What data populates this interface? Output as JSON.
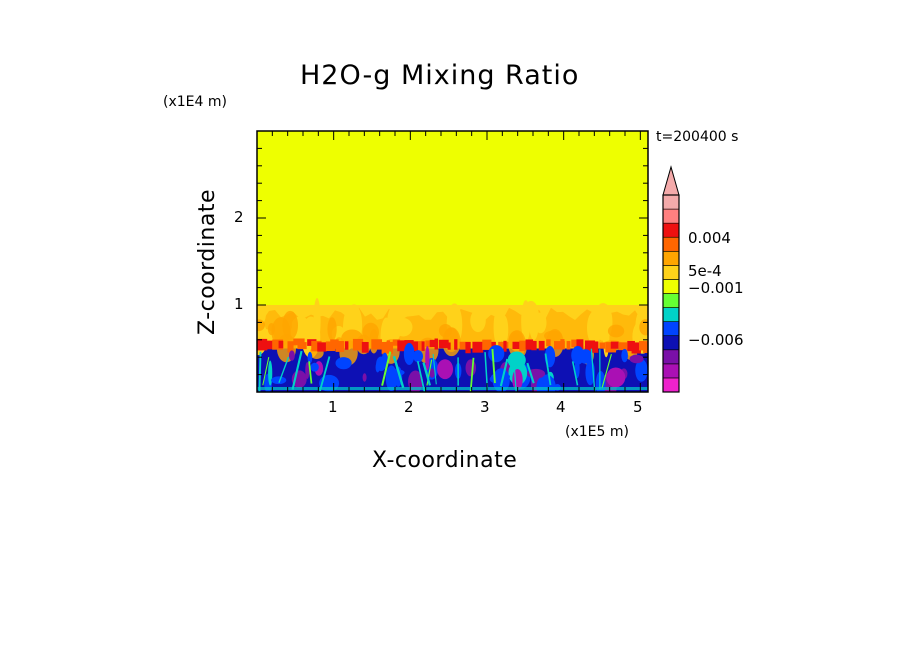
{
  "chart_data": {
    "type": "heatmap",
    "title": "H2O-g Mixing Ratio",
    "xlabel": "X-coordinate",
    "ylabel": "Z-coordinate",
    "x_multiplier": "(x1E5 m)",
    "y_multiplier": "(x1E4 m)",
    "time_annotation": "t=200400 s",
    "xlim": [
      0,
      5.1
    ],
    "ylim": [
      0,
      3.0
    ],
    "x_ticks": [
      {
        "value": 1,
        "label": "1"
      },
      {
        "value": 2,
        "label": "2"
      },
      {
        "value": 3,
        "label": "3"
      },
      {
        "value": 4,
        "label": "4"
      },
      {
        "value": 5,
        "label": "5"
      }
    ],
    "y_ticks": [
      {
        "value": 1,
        "label": "1"
      },
      {
        "value": 2,
        "label": "2"
      }
    ],
    "layers": [
      {
        "z_from": 1.0,
        "z_to": 3.0,
        "color": "#eeff00",
        "description_value": "background"
      },
      {
        "z_from": 0.5,
        "z_to": 1.0,
        "color": "#ffd21a"
      },
      {
        "z_from": 0.0,
        "z_to": 0.5,
        "color": "#0d10b4"
      }
    ],
    "colorbar": {
      "extend": "max",
      "colors": [
        "#ee22cc",
        "#aa10b4",
        "#7a10a8",
        "#0d10b4",
        "#0044ff",
        "#00d2c8",
        "#66ff33",
        "#eeff00",
        "#ffd21a",
        "#ffa500",
        "#ff6600",
        "#ee1010",
        "#ff8080",
        "#f4aaaa"
      ],
      "labels": [
        {
          "text": "0.004",
          "boundary": 11
        },
        {
          "text": "5e-4",
          "boundary": 8
        },
        {
          "text": "−0.001",
          "boundary": 6
        },
        {
          "text": "−0.006",
          "boundary": 2
        }
      ]
    }
  }
}
